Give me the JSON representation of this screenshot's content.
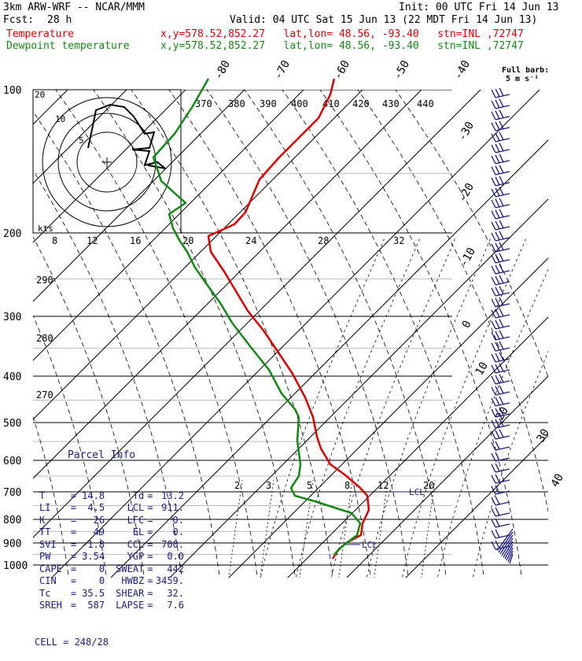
{
  "header": {
    "title": "3km ARW-WRF -- NCAR/MMM",
    "init": "Init: 00 UTC Fri 14 Jun 13",
    "fcst_label": "Fcst:",
    "fcst_value": "28 h",
    "valid": "Valid: 04 UTC Sat 15 Jun 13 (22 MDT Fri 14 Jun 13)",
    "temp_label": "Temperature",
    "temp_info": "x,y=578.52,852.27   lat,lon= 48.56, -93.40   stn=INL ,72747",
    "dew_label": "Dewpoint temperature",
    "dew_info": "x,y=578.52,852.27   lat,lon= 48.56, -93.40   stn=INL ,72747"
  },
  "colors": {
    "temperature": "#e00000",
    "dewpoint": "#108a10",
    "wind_barbs": "#1a1a8c",
    "parcel": "#1a1a8c",
    "grid": "#000000"
  },
  "chart_data": {
    "type": "line",
    "subtype": "skew-T log-P sounding",
    "y_axis": "pressure (hPa)",
    "y_scale": "log",
    "pressure_levels": [
      100,
      200,
      300,
      400,
      500,
      600,
      700,
      800,
      900,
      1000
    ],
    "isotherm_labels": [
      "-80",
      "-70",
      "-60",
      "-50",
      "-40",
      "-30",
      "-20",
      "-10",
      "0",
      "10",
      "20",
      "30",
      "40"
    ],
    "mixing_ratio_labels": [
      "2",
      "3",
      "5",
      "8",
      "12",
      "20"
    ],
    "theta_labels": [
      "370",
      "380",
      "390",
      "400",
      "410",
      "420",
      "430",
      "440"
    ],
    "theta_side_labels": [
      "290",
      "280",
      "270"
    ],
    "lcl_label_upper": "LCL",
    "lcl_label_lower": "LCL",
    "series": [
      {
        "name": "Temperature",
        "points": [
          [
            425,
            100
          ],
          [
            420,
            120
          ],
          [
            405,
            150
          ],
          [
            385,
            170
          ],
          [
            355,
            200
          ],
          [
            330,
            228
          ],
          [
            312,
            270
          ],
          [
            298,
            285
          ],
          [
            265,
            300
          ],
          [
            268,
            320
          ],
          [
            285,
            345
          ],
          [
            300,
            370
          ],
          [
            315,
            395
          ],
          [
            335,
            420
          ],
          [
            352,
            445
          ],
          [
            372,
            475
          ],
          [
            388,
            505
          ],
          [
            398,
            530
          ],
          [
            403,
            555
          ],
          [
            408,
            570
          ],
          [
            420,
            590
          ],
          [
            438,
            603
          ],
          [
            458,
            620
          ],
          [
            467,
            630
          ],
          [
            469,
            648
          ],
          [
            461,
            665
          ],
          [
            459,
            680
          ],
          [
            440,
            690
          ],
          [
            429,
            700
          ],
          [
            423,
            710
          ]
        ]
      },
      {
        "name": "Dewpoint temperature",
        "points": [
          [
            265,
            100
          ],
          [
            245,
            135
          ],
          [
            222,
            170
          ],
          [
            195,
            200
          ],
          [
            205,
            230
          ],
          [
            236,
            258
          ],
          [
            215,
            272
          ],
          [
            220,
            290
          ],
          [
            228,
            305
          ],
          [
            238,
            320
          ],
          [
            248,
            340
          ],
          [
            262,
            360
          ],
          [
            280,
            385
          ],
          [
            295,
            410
          ],
          [
            318,
            440
          ],
          [
            342,
            470
          ],
          [
            358,
            500
          ],
          [
            375,
            520
          ],
          [
            380,
            530
          ],
          [
            378,
            560
          ],
          [
            382,
            590
          ],
          [
            380,
            605
          ],
          [
            370,
            620
          ],
          [
            375,
            630
          ],
          [
            400,
            637
          ],
          [
            425,
            645
          ],
          [
            447,
            652
          ],
          [
            458,
            665
          ],
          [
            454,
            680
          ],
          [
            434,
            695
          ],
          [
            425,
            705
          ]
        ]
      }
    ]
  },
  "hodograph": {
    "units_label": "kts",
    "ring_labels": [
      "5",
      "10",
      "20"
    ],
    "speed_labels": [
      "8",
      "12",
      "16",
      "20",
      "24",
      "28",
      "32"
    ]
  },
  "barb_legend": {
    "line1": "Full barb:",
    "line2": "5 m s⁻¹"
  },
  "parcel": {
    "title": "Parcel Info",
    "rows": [
      {
        "k1": "T",
        "v1": "14.8",
        "k2": "Td",
        "v2": "13.2"
      },
      {
        "k1": "LI",
        "v1": "4.5",
        "k2": "LCL",
        "v2": "911."
      },
      {
        "k1": "K",
        "v1": "26",
        "k2": "LFC",
        "v2": "0."
      },
      {
        "k1": "TT",
        "v1": "49",
        "k2": "EL",
        "v2": "0."
      },
      {
        "k1": "SVI",
        "v1": "-1.8",
        "k2": "CCL",
        "v2": "700."
      },
      {
        "k1": "PW",
        "v1": "3.54",
        "k2": "YGP",
        "v2": "0.0"
      },
      {
        "k1": "CAPE",
        "v1": "0",
        "k2": "SWEAT",
        "v2": "442"
      },
      {
        "k1": "CIN",
        "v1": "0",
        "k2": "HWBZ",
        "v2": "3459."
      },
      {
        "k1": "Tc",
        "v1": "35.5",
        "k2": "SHEAR",
        "v2": "32."
      },
      {
        "k1": "SREH",
        "v1": "587",
        "k2": "LAPSE",
        "v2": "7.6"
      }
    ],
    "cell": "CELL = 248/28"
  }
}
